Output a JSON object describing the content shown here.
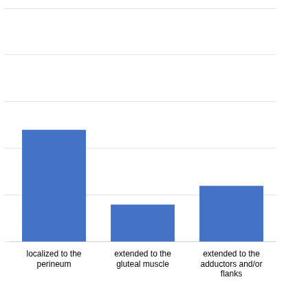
{
  "chart_data": {
    "type": "bar",
    "categories": [
      "localized to the\nperineum",
      "extended to the\ngluteal muscle",
      "extended to the\nadductors and/or\nflanks"
    ],
    "values": [
      12,
      4,
      6
    ],
    "color": "#4472C4",
    "ylim": [
      0,
      25
    ],
    "yticks": [
      0,
      5,
      10,
      15,
      20,
      25
    ],
    "grid": true,
    "tick_labels": "x"
  }
}
